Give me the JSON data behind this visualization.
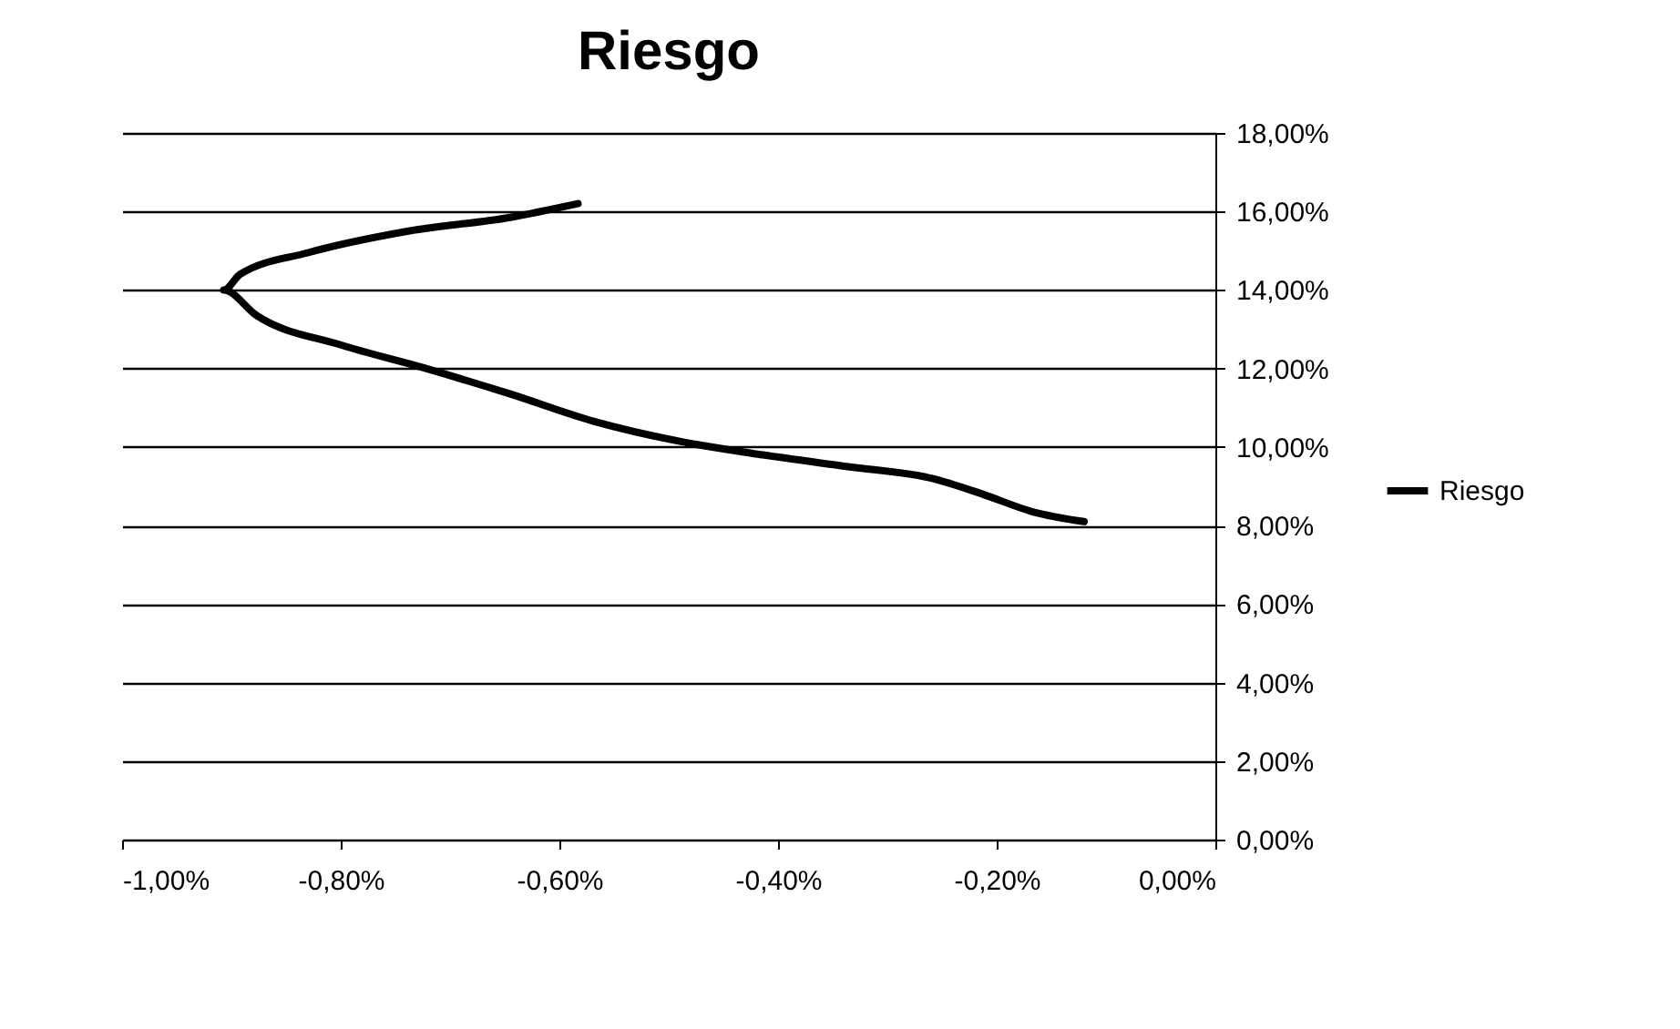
{
  "chart_data": {
    "type": "line",
    "title": "Riesgo",
    "x": [
      -0.583,
      -0.645,
      -0.738,
      -0.83,
      -0.892,
      -0.907,
      -0.877,
      -0.8,
      -0.722,
      -0.645,
      -0.568,
      -0.491,
      -0.414,
      -0.336,
      -0.259,
      -0.213,
      -0.167,
      -0.12
    ],
    "series": [
      {
        "name": "Riesgo",
        "color": "#000000",
        "values": [
          16.2,
          15.85,
          15.5,
          14.95,
          14.4,
          14.0,
          13.35,
          12.6,
          12.0,
          11.35,
          10.65,
          10.15,
          9.8,
          9.5,
          9.2,
          8.8,
          8.35,
          8.1
        ]
      }
    ],
    "xlim": [
      -1,
      0
    ],
    "xticks": [
      {
        "value": -1,
        "label": "-1,00%"
      },
      {
        "value": -0.8,
        "label": "-0,80%"
      },
      {
        "value": -0.6,
        "label": "-0,60%"
      },
      {
        "value": -0.4,
        "label": "-0,40%"
      },
      {
        "value": -0.2,
        "label": "-0,20%"
      },
      {
        "value": 0,
        "label": "0,00%"
      }
    ],
    "ylim": [
      0,
      18
    ],
    "yticks": [
      {
        "value": 0,
        "label": "0,00%"
      },
      {
        "value": 2,
        "label": "2,00%"
      },
      {
        "value": 4,
        "label": "4,00%"
      },
      {
        "value": 6,
        "label": "6,00%"
      },
      {
        "value": 8,
        "label": "8,00%"
      },
      {
        "value": 10,
        "label": "10,00%"
      },
      {
        "value": 12,
        "label": "12,00%"
      },
      {
        "value": 14,
        "label": "14,00%"
      },
      {
        "value": 16,
        "label": "16,00%"
      },
      {
        "value": 18,
        "label": "18,00%"
      }
    ],
    "grid": "y",
    "legend": "right",
    "marker": "none",
    "line_style": "solid"
  }
}
